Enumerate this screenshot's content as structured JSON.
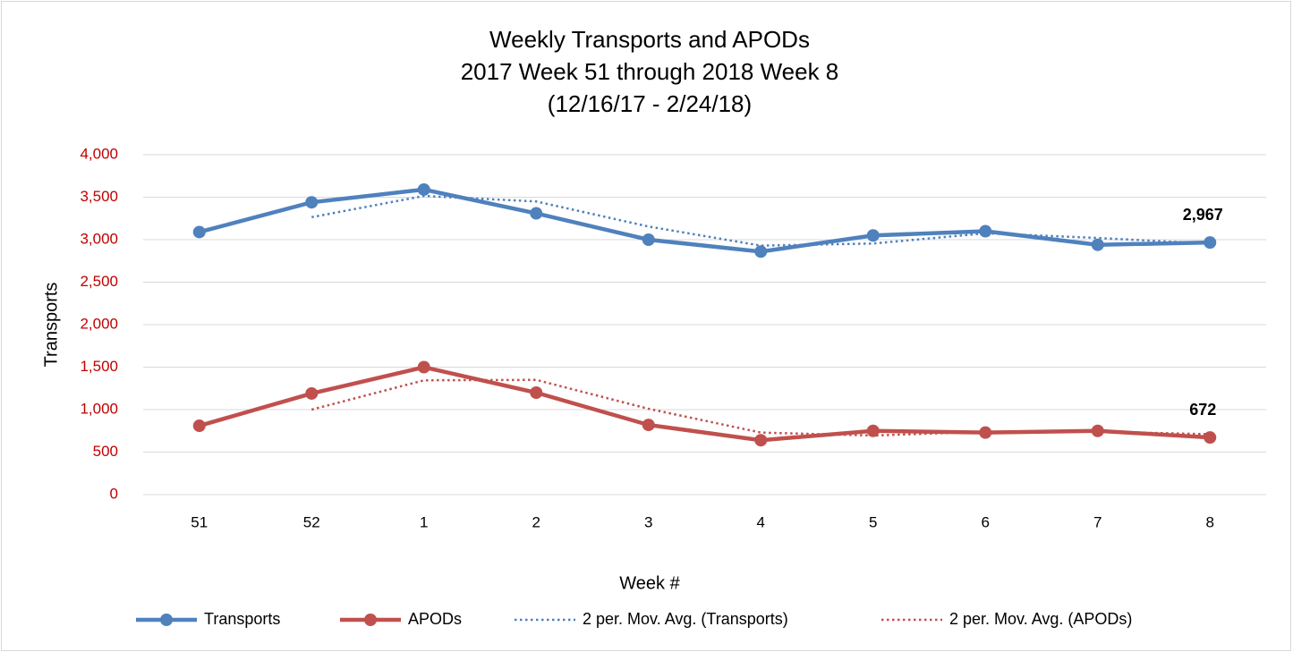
{
  "chart_data": {
    "type": "line",
    "title": [
      "Weekly Transports and APODs",
      "2017 Week 51 through 2018 Week 8",
      "(12/16/17 - 2/24/18)"
    ],
    "x_label": "Week #",
    "y_label": "Transports",
    "categories": [
      "51",
      "52",
      "1",
      "2",
      "3",
      "4",
      "5",
      "6",
      "7",
      "8"
    ],
    "series": [
      {
        "name": "Transports",
        "color": "#4f81bd",
        "style": "solid",
        "markers": true,
        "values": [
          3090,
          3440,
          3590,
          3310,
          3000,
          2860,
          3050,
          3100,
          2940,
          2967
        ],
        "value_labels": [
          null,
          null,
          null,
          null,
          null,
          null,
          null,
          null,
          null,
          "2,967"
        ]
      },
      {
        "name": "APODs",
        "color": "#c0504d",
        "style": "solid",
        "markers": true,
        "values": [
          810,
          1190,
          1500,
          1200,
          820,
          640,
          750,
          730,
          750,
          672
        ],
        "value_labels": [
          null,
          null,
          null,
          null,
          null,
          null,
          null,
          null,
          null,
          "672"
        ]
      },
      {
        "name": "2 per. Mov. Avg. (Transports)",
        "color": "#4f81bd",
        "style": "dotted",
        "markers": false,
        "values": [
          null,
          3265,
          3515,
          3450,
          3155,
          2930,
          2955,
          3075,
          3020,
          2954
        ]
      },
      {
        "name": "2 per. Mov. Avg. (APODs)",
        "color": "#c0504d",
        "style": "dotted",
        "markers": false,
        "values": [
          null,
          1000,
          1345,
          1350,
          1010,
          730,
          695,
          740,
          740,
          711
        ]
      }
    ],
    "ylim": [
      0,
      4000
    ],
    "yticks": [
      0,
      500,
      {
        "value": 1000,
        "label": "1,000"
      },
      {
        "value": 1500,
        "label": "1,500"
      },
      {
        "value": 2000,
        "label": "2,000"
      },
      {
        "value": 2500,
        "label": "2,500"
      },
      {
        "value": 3000,
        "label": "3,000"
      },
      {
        "value": 3500,
        "label": "3,500"
      },
      {
        "value": 4000,
        "label": "4,000"
      }
    ],
    "ytick_color": "#c00000",
    "grid": true,
    "legend": "bottom"
  }
}
